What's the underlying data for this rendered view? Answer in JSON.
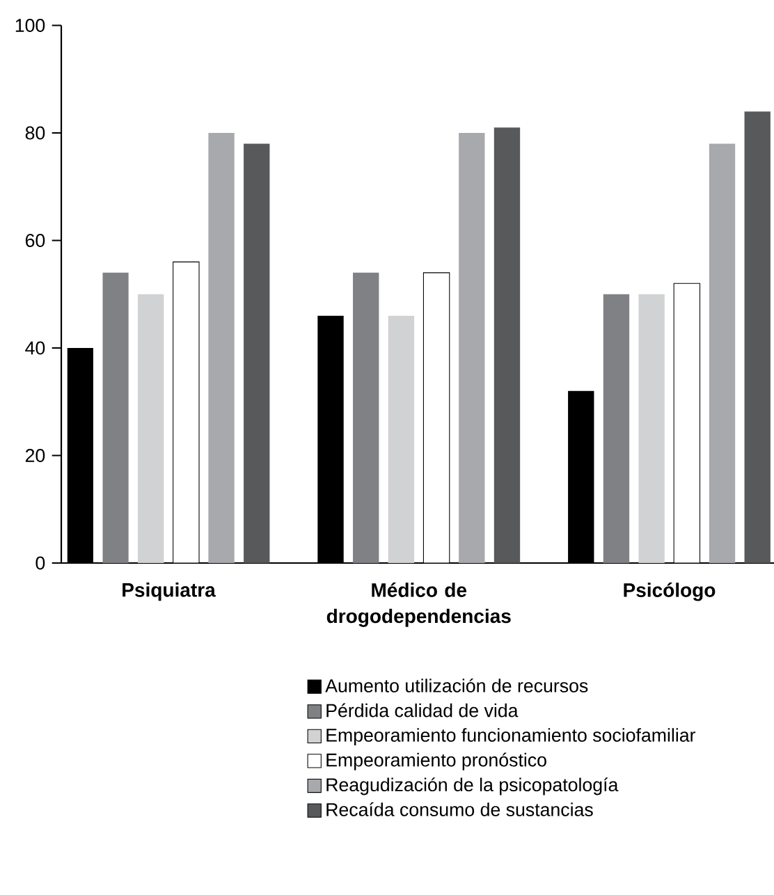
{
  "chart_data": {
    "type": "bar",
    "categories": [
      "Psiquiatra",
      "Médico de drogodependencias",
      "Psicólogo"
    ],
    "series": [
      {
        "name": "Aumento utilización de recursos",
        "color": "#000000",
        "values": [
          40,
          46,
          32
        ]
      },
      {
        "name": "Pérdida calidad de vida",
        "color": "#808184",
        "values": [
          54,
          54,
          50
        ]
      },
      {
        "name": "Empeoramiento funcionamiento sociofamiliar",
        "color": "#d1d2d4",
        "values": [
          50,
          46,
          50
        ]
      },
      {
        "name": "Empeoramiento pronóstico",
        "color": "#ffffff",
        "values": [
          56,
          54,
          52
        ]
      },
      {
        "name": "Reagudización de la psicopatología",
        "color": "#a7a9ac",
        "values": [
          80,
          80,
          78
        ]
      },
      {
        "name": "Recaída consumo de sustancias",
        "color": "#58595b",
        "values": [
          78,
          81,
          84
        ]
      }
    ],
    "ylim": [
      0,
      100
    ],
    "yticks": [
      0,
      20,
      40,
      60,
      80,
      100
    ],
    "grid": false,
    "legend": "bottom"
  }
}
